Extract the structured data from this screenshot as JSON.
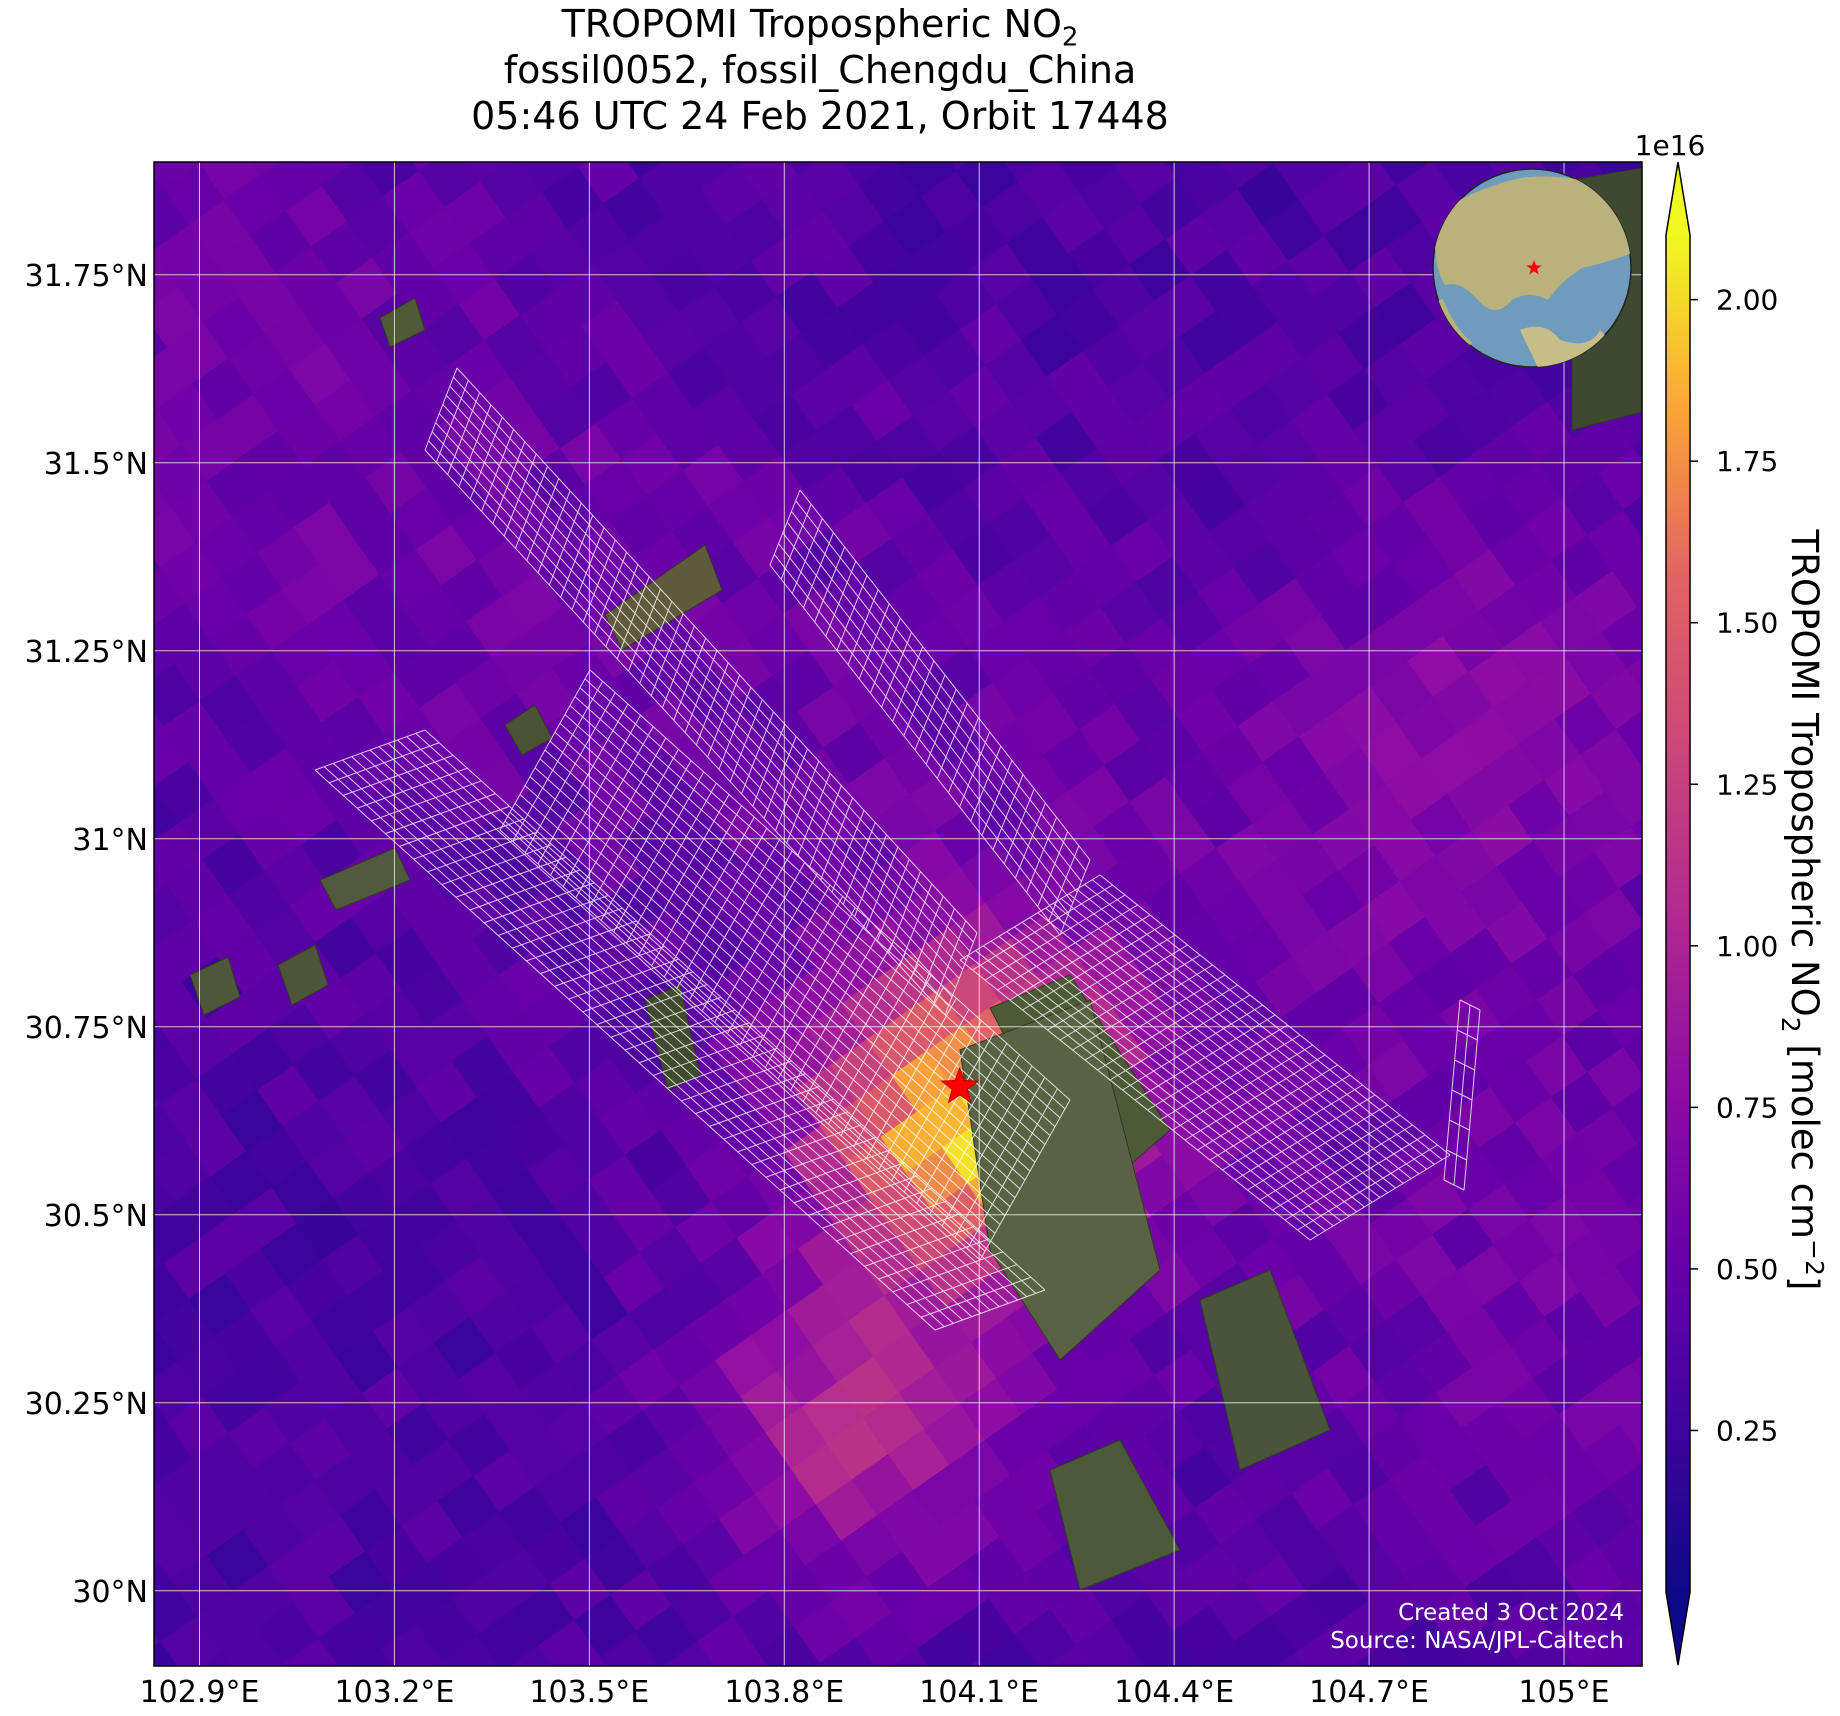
{
  "title": {
    "line1_prefix": "TROPOMI Tropospheric NO",
    "line1_sub": "2",
    "line2": "fossil0052, fossil_Chengdu_China",
    "line3": "05:46 UTC 24 Feb 2021, Orbit 17448"
  },
  "map": {
    "extent": {
      "lon": [
        102.83,
        105.12
      ],
      "lat": [
        29.9,
        31.9
      ]
    },
    "lat_ticks": [
      {
        "value": 31.75,
        "label": "31.75°N"
      },
      {
        "value": 31.5,
        "label": "31.5°N"
      },
      {
        "value": 31.25,
        "label": "31.25°N"
      },
      {
        "value": 31.0,
        "label": "31°N"
      },
      {
        "value": 30.75,
        "label": "30.75°N"
      },
      {
        "value": 30.5,
        "label": "30.5°N"
      },
      {
        "value": 30.25,
        "label": "30.25°N"
      },
      {
        "value": 30.0,
        "label": "30°N"
      }
    ],
    "lon_ticks": [
      {
        "value": 102.9,
        "label": "102.9°E"
      },
      {
        "value": 103.2,
        "label": "103.2°E"
      },
      {
        "value": 103.5,
        "label": "103.5°E"
      },
      {
        "value": 103.8,
        "label": "103.8°E"
      },
      {
        "value": 104.1,
        "label": "104.1°E"
      },
      {
        "value": 104.4,
        "label": "104.4°E"
      },
      {
        "value": 104.7,
        "label": "104.7°E"
      },
      {
        "value": 105.0,
        "label": "105°E"
      }
    ],
    "target": {
      "lon": 104.07,
      "lat": 30.67,
      "color": "#ff0000"
    },
    "inset_globe": {
      "marker_color": "#ff0000",
      "ocean_color": "#6f9bbd",
      "land_color": "#b9b27c"
    }
  },
  "colorbar": {
    "exponent_label": "1e16",
    "label_prefix": "TROPOMI Tropospheric NO",
    "label_sub": "2",
    "label_suffix": " [molec cm",
    "label_sup": "−2",
    "label_end": "]",
    "range": [
      0.0,
      2.1
    ],
    "ticks": [
      {
        "value": 0.25,
        "label": "0.25"
      },
      {
        "value": 0.5,
        "label": "0.50"
      },
      {
        "value": 0.75,
        "label": "0.75"
      },
      {
        "value": 1.0,
        "label": "1.00"
      },
      {
        "value": 1.25,
        "label": "1.25"
      },
      {
        "value": 1.5,
        "label": "1.50"
      },
      {
        "value": 1.75,
        "label": "1.75"
      },
      {
        "value": 2.0,
        "label": "2.00"
      }
    ],
    "colormap": "plasma",
    "extend": "both",
    "under_color": "#0d0887",
    "over_color": "#f0f921"
  },
  "credits": {
    "created": "Created 3 Oct 2024",
    "source": "Source: NASA/JPL-Caltech"
  }
}
